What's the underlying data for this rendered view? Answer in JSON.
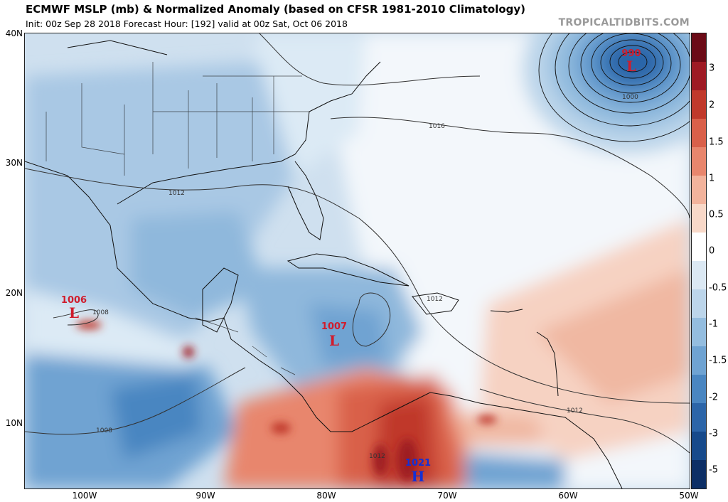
{
  "header": {
    "title": "ECMWF MSLP (mb) & Normalized Anomaly (based on CFSR 1981-2010 Climatology)",
    "subtitle": "Init: 00z Sep 28 2018   Forecast Hour: [192]   valid at 00z Sat, Oct 06 2018",
    "credit": "TROPICALTIDBITS.COM"
  },
  "axes": {
    "lat_labels": [
      "40N",
      "30N",
      "20N",
      "10N"
    ],
    "lon_labels": [
      "100W",
      "90W",
      "80W",
      "70W",
      "60W",
      "50W"
    ]
  },
  "colorbar": {
    "labels": [
      "3",
      "2",
      "1.5",
      "1",
      "0.5",
      "0",
      "-0.5",
      "-1",
      "-1.5",
      "-2",
      "-3",
      "-5"
    ],
    "colors": [
      "#6b0a16",
      "#9e1a24",
      "#c0392b",
      "#d9604a",
      "#e8866d",
      "#f2b39c",
      "#f8d8c8",
      "#ffffff",
      "#dbe8f3",
      "#bcd5ea",
      "#94bddf",
      "#6fa3d2",
      "#4a86c1",
      "#2c65a8",
      "#174a8b",
      "#0d2f66"
    ]
  },
  "systems": [
    {
      "type": "low",
      "letter": "L",
      "pressure": "990",
      "color": "#d01c2c"
    },
    {
      "type": "low",
      "letter": "L",
      "pressure": "1006",
      "color": "#d01c2c"
    },
    {
      "type": "low",
      "letter": "L",
      "pressure": "1007",
      "color": "#d01c2c"
    },
    {
      "type": "high",
      "letter": "H",
      "pressure": "1021",
      "color": "#1330d6"
    }
  ],
  "isobar_labels": [
    "1016",
    "1012",
    "1008",
    "1012",
    "1008",
    "1000",
    "1012",
    "1012"
  ]
}
